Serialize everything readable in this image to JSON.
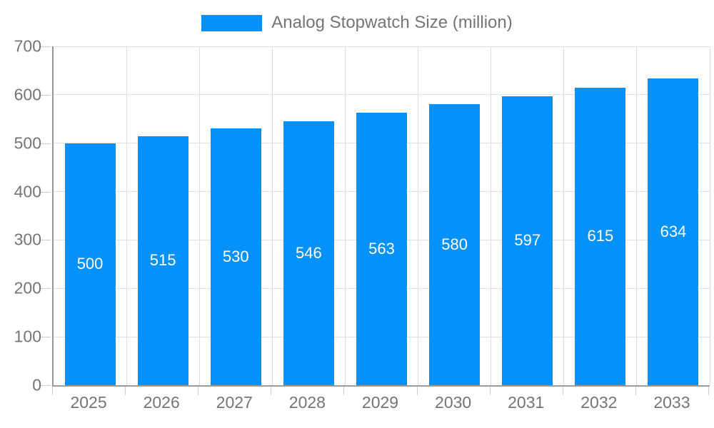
{
  "legend": {
    "position": "top-center"
  },
  "colors": {
    "bar": "#0591fa",
    "axis_line": "#9a9a9a",
    "gridline": "#e2e2e2",
    "tick": "#cccccc",
    "axis_text": "#757575",
    "bar_label_text": "#ffffff",
    "background": "#ffffff"
  },
  "chart_data": {
    "type": "bar",
    "title": "Analog Stopwatch Size (million)",
    "series_name": "Analog Stopwatch Size (million)",
    "categories": [
      "2025",
      "2026",
      "2027",
      "2028",
      "2029",
      "2030",
      "2031",
      "2032",
      "2033"
    ],
    "values": [
      500,
      515,
      530,
      546,
      563,
      580,
      597,
      615,
      634
    ],
    "xlabel": "",
    "ylabel": "",
    "ylim": [
      0,
      700
    ],
    "ytick_step": 100,
    "yticks": [
      "0",
      "100",
      "200",
      "300",
      "400",
      "500",
      "600",
      "700"
    ],
    "grid": true,
    "bar_labels_inside": true,
    "legend_position": "top-center"
  }
}
